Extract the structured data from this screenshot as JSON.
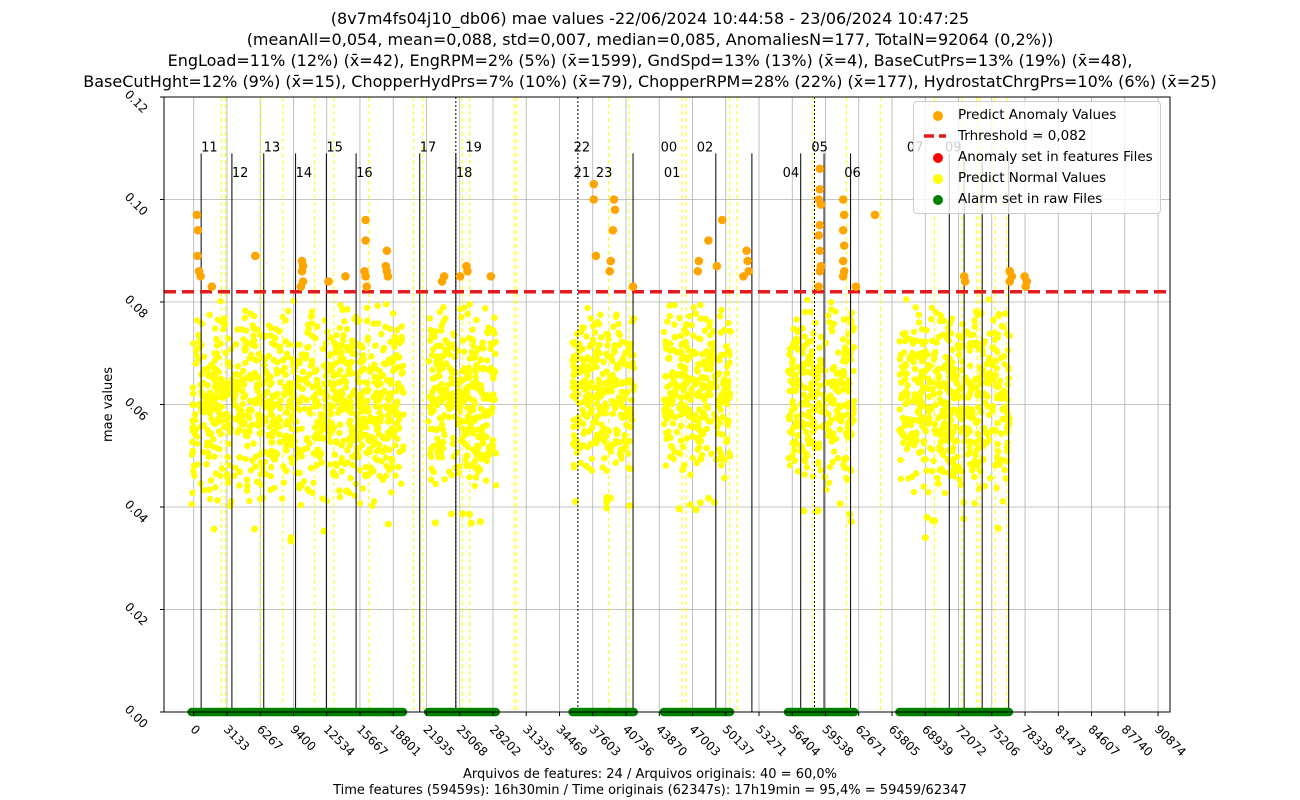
{
  "title": {
    "line1": "(8v7m4fs04j10_db06) mae values -22/06/2024 10:44:58 - 23/06/2024 10:47:25",
    "line2": "(meanAll=0,054, mean=0,088, std=0,007, median=0,085, AnomaliesN=177, TotalN=92064 (0,2%))",
    "line3": "EngLoad=11% (12%) (x̄=42), EngRPM=2% (5%) (x̄=1599), GndSpd=13% (13%) (x̄=4), BaseCutPrs=13% (19%) (x̄=48),",
    "line4": "BaseCutHght=12% (9%) (x̄=15), ChopperHydPrs=7% (10%) (x̄=79), ChopperRPM=28% (22%) (x̄=177), HydrostatChrgPrs=10% (6%) (x̄=25)"
  },
  "footer": {
    "line1": "Arquivos de features: 24 / Arquivos originais: 40 = 60,0%",
    "line2": "Time features (59459s): 16h30min / Time originais (62347s): 17h19min = 95,4% = 59459/62347"
  },
  "colors": {
    "anomaly": "#ffa500",
    "threshold": "#e41a1c",
    "anomaly_features": "#ff0000",
    "normal": "#ffff00",
    "alarm": "#008000",
    "grid": "#b0b0b0"
  },
  "chart_data": {
    "type": "scatter",
    "title": "(8v7m4fs04j10_db06) mae values -22/06/2024 10:44:58 - 23/06/2024 10:47:25",
    "xlabel": "",
    "ylabel": "mae values",
    "xlim": [
      -2800,
      92000
    ],
    "ylim": [
      0.0,
      0.12
    ],
    "grid": true,
    "legend_position": "top-right",
    "x_ticks": [
      0,
      3133,
      6267,
      9400,
      12534,
      15667,
      18801,
      21935,
      25068,
      28202,
      31335,
      34469,
      37603,
      40736,
      43870,
      47003,
      50137,
      53271,
      56404,
      59538,
      62671,
      65805,
      68939,
      72072,
      75206,
      78339,
      81473,
      84607,
      87740,
      90874
    ],
    "y_ticks": [
      0.0,
      0.02,
      0.04,
      0.06,
      0.08,
      0.1,
      0.12
    ],
    "y_tick_labels": [
      "0.00",
      "0.02",
      "0.04",
      "0.06",
      "0.08",
      "0.10",
      "0.12"
    ],
    "threshold": 0.082,
    "legend": [
      "Predict Anomaly Values",
      "Trhreshold = 0,082",
      "Anomaly set in features Files",
      "Predict Normal Values",
      "Alarm set in raw Files"
    ],
    "normal_segments": [
      {
        "x_start": -200,
        "x_end": 19800,
        "y_min": 0.033,
        "y_max": 0.082
      },
      {
        "x_start": 22100,
        "x_end": 28500,
        "y_min": 0.036,
        "y_max": 0.082
      },
      {
        "x_start": 35700,
        "x_end": 41500,
        "y_min": 0.038,
        "y_max": 0.082
      },
      {
        "x_start": 44300,
        "x_end": 50600,
        "y_min": 0.038,
        "y_max": 0.082
      },
      {
        "x_start": 56000,
        "x_end": 62300,
        "y_min": 0.037,
        "y_max": 0.082
      },
      {
        "x_start": 66500,
        "x_end": 76900,
        "y_min": 0.034,
        "y_max": 0.082
      }
    ],
    "anomaly_points": [
      {
        "x": 300,
        "y": 0.097
      },
      {
        "x": 400,
        "y": 0.094
      },
      {
        "x": 350,
        "y": 0.089
      },
      {
        "x": 500,
        "y": 0.086
      },
      {
        "x": 650,
        "y": 0.085
      },
      {
        "x": 1700,
        "y": 0.083
      },
      {
        "x": 5800,
        "y": 0.089
      },
      {
        "x": 10200,
        "y": 0.088
      },
      {
        "x": 10300,
        "y": 0.087
      },
      {
        "x": 10200,
        "y": 0.086
      },
      {
        "x": 10300,
        "y": 0.084
      },
      {
        "x": 10100,
        "y": 0.083
      },
      {
        "x": 12700,
        "y": 0.084
      },
      {
        "x": 14300,
        "y": 0.085
      },
      {
        "x": 16200,
        "y": 0.096
      },
      {
        "x": 16200,
        "y": 0.092
      },
      {
        "x": 16100,
        "y": 0.086
      },
      {
        "x": 16200,
        "y": 0.085
      },
      {
        "x": 16300,
        "y": 0.083
      },
      {
        "x": 18200,
        "y": 0.09
      },
      {
        "x": 18100,
        "y": 0.087
      },
      {
        "x": 18200,
        "y": 0.086
      },
      {
        "x": 18300,
        "y": 0.085
      },
      {
        "x": 23400,
        "y": 0.084
      },
      {
        "x": 23600,
        "y": 0.085
      },
      {
        "x": 25100,
        "y": 0.085
      },
      {
        "x": 25700,
        "y": 0.087
      },
      {
        "x": 25800,
        "y": 0.086
      },
      {
        "x": 28000,
        "y": 0.085
      },
      {
        "x": 37700,
        "y": 0.103
      },
      {
        "x": 37700,
        "y": 0.1
      },
      {
        "x": 37900,
        "y": 0.089
      },
      {
        "x": 39600,
        "y": 0.1
      },
      {
        "x": 39700,
        "y": 0.098
      },
      {
        "x": 39500,
        "y": 0.094
      },
      {
        "x": 39300,
        "y": 0.088
      },
      {
        "x": 39200,
        "y": 0.086
      },
      {
        "x": 41400,
        "y": 0.083
      },
      {
        "x": 47500,
        "y": 0.086
      },
      {
        "x": 47600,
        "y": 0.088
      },
      {
        "x": 48500,
        "y": 0.092
      },
      {
        "x": 49300,
        "y": 0.087
      },
      {
        "x": 49800,
        "y": 0.096
      },
      {
        "x": 52100,
        "y": 0.09
      },
      {
        "x": 52200,
        "y": 0.088
      },
      {
        "x": 52300,
        "y": 0.086
      },
      {
        "x": 51800,
        "y": 0.085
      },
      {
        "x": 59000,
        "y": 0.106
      },
      {
        "x": 59000,
        "y": 0.102
      },
      {
        "x": 58900,
        "y": 0.1
      },
      {
        "x": 59100,
        "y": 0.099
      },
      {
        "x": 59000,
        "y": 0.095
      },
      {
        "x": 58900,
        "y": 0.093
      },
      {
        "x": 59000,
        "y": 0.09
      },
      {
        "x": 59100,
        "y": 0.087
      },
      {
        "x": 59000,
        "y": 0.086
      },
      {
        "x": 58900,
        "y": 0.083
      },
      {
        "x": 61200,
        "y": 0.1
      },
      {
        "x": 61300,
        "y": 0.097
      },
      {
        "x": 61200,
        "y": 0.094
      },
      {
        "x": 61300,
        "y": 0.091
      },
      {
        "x": 61200,
        "y": 0.088
      },
      {
        "x": 61300,
        "y": 0.086
      },
      {
        "x": 61200,
        "y": 0.085
      },
      {
        "x": 62400,
        "y": 0.083
      },
      {
        "x": 64200,
        "y": 0.097
      },
      {
        "x": 72600,
        "y": 0.085
      },
      {
        "x": 72700,
        "y": 0.084
      },
      {
        "x": 76900,
        "y": 0.086
      },
      {
        "x": 77100,
        "y": 0.085
      },
      {
        "x": 76900,
        "y": 0.084
      },
      {
        "x": 78300,
        "y": 0.085
      },
      {
        "x": 78500,
        "y": 0.084
      },
      {
        "x": 78400,
        "y": 0.083
      }
    ],
    "vertical_lines_solid": [
      700,
      3600,
      6600,
      9600,
      12500,
      15300,
      21300,
      24700,
      41400,
      49200,
      52600,
      57200,
      59400,
      61900,
      72600,
      71200,
      74300,
      76800
    ],
    "vertical_lines_dashed": [
      2600,
      3000,
      6300,
      8400,
      11400,
      13200,
      16500,
      20700,
      21600,
      25300,
      26000,
      30200,
      30400,
      39100,
      41000,
      46000,
      46400,
      50500,
      51200,
      58300,
      61500,
      64700,
      69800,
      72400,
      73800,
      74100,
      75500,
      76600
    ],
    "vertical_lines_dotted": [
      24700,
      36200,
      58500
    ],
    "alarm_bands": [
      {
        "x_start": -200,
        "x_end": 19800
      },
      {
        "x_start": 22100,
        "x_end": 28500
      },
      {
        "x_start": 35700,
        "x_end": 41500
      },
      {
        "x_start": 44300,
        "x_end": 50600
      },
      {
        "x_start": 56000,
        "x_end": 62300
      },
      {
        "x_start": 66500,
        "x_end": 76900
      }
    ],
    "file_labels": [
      {
        "text": "11",
        "x": 700,
        "y": 0.109
      },
      {
        "text": "12",
        "x": 3600,
        "y": 0.104
      },
      {
        "text": "13",
        "x": 6600,
        "y": 0.109
      },
      {
        "text": "14",
        "x": 9600,
        "y": 0.104
      },
      {
        "text": "15",
        "x": 12500,
        "y": 0.109
      },
      {
        "text": "16",
        "x": 15300,
        "y": 0.104
      },
      {
        "text": "17",
        "x": 21300,
        "y": 0.109
      },
      {
        "text": "18",
        "x": 24700,
        "y": 0.104
      },
      {
        "text": "19",
        "x": 25600,
        "y": 0.109
      },
      {
        "text": "22",
        "x": 35800,
        "y": 0.109
      },
      {
        "text": "21",
        "x": 35800,
        "y": 0.104
      },
      {
        "text": "23",
        "x": 37900,
        "y": 0.104
      },
      {
        "text": "00",
        "x": 44000,
        "y": 0.109
      },
      {
        "text": "01",
        "x": 44300,
        "y": 0.104
      },
      {
        "text": "02",
        "x": 47400,
        "y": 0.109
      },
      {
        "text": "04",
        "x": 55500,
        "y": 0.104
      },
      {
        "text": "05",
        "x": 58200,
        "y": 0.109
      },
      {
        "text": "06",
        "x": 61300,
        "y": 0.104
      },
      {
        "text": "07",
        "x": 67200,
        "y": 0.109
      },
      {
        "text": "09",
        "x": 70800,
        "y": 0.109
      }
    ]
  }
}
